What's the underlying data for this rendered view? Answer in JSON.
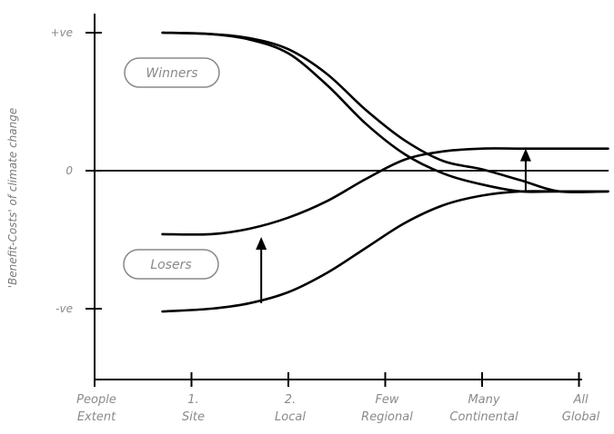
{
  "chart_data": {
    "type": "line",
    "ylabel": "'Benefit-Costs' of climate change",
    "xlabel": "",
    "ylim": [
      -1.4,
      1.4
    ],
    "y_ticks": [
      {
        "value": 1,
        "label": "+ve"
      },
      {
        "value": 0,
        "label": "0"
      },
      {
        "value": -1,
        "label": "-ve"
      }
    ],
    "x_ticks": [
      {
        "value": 0,
        "line1": "People",
        "line2": "Extent"
      },
      {
        "value": 1,
        "line1": "1.",
        "line2": "Site"
      },
      {
        "value": 2,
        "line1": "2.",
        "line2": "Local"
      },
      {
        "value": 3,
        "line1": "Few",
        "line2": "Regional"
      },
      {
        "value": 4,
        "line1": "Many",
        "line2": "Continental"
      },
      {
        "value": 5,
        "line1": "All",
        "line2": "Global"
      }
    ],
    "annotations": [
      "Winners",
      "Losers"
    ],
    "series": [
      {
        "x": [
          0.7,
          1.2,
          1.6,
          2.0,
          2.4,
          2.8,
          3.2,
          3.6,
          4.0,
          4.4,
          4.8,
          5.3
        ],
        "y": [
          1.0,
          0.99,
          0.95,
          0.85,
          0.62,
          0.34,
          0.12,
          -0.02,
          -0.1,
          -0.15,
          -0.15,
          -0.15
        ]
      },
      {
        "x": [
          0.7,
          1.2,
          1.6,
          2.0,
          2.4,
          2.8,
          3.2,
          3.6,
          4.0,
          4.4,
          4.8,
          5.3
        ],
        "y": [
          1.0,
          0.99,
          0.96,
          0.88,
          0.7,
          0.44,
          0.22,
          0.07,
          0.01,
          -0.07,
          -0.15,
          -0.15
        ]
      },
      {
        "x": [
          0.7,
          1.2,
          1.6,
          2.0,
          2.4,
          2.8,
          3.2,
          3.6,
          4.0,
          4.4,
          4.8,
          5.3
        ],
        "y": [
          -0.46,
          -0.46,
          -0.42,
          -0.34,
          -0.22,
          -0.06,
          0.08,
          0.14,
          0.16,
          0.16,
          0.16,
          0.16
        ]
      },
      {
        "x": [
          0.7,
          1.2,
          1.6,
          2.0,
          2.4,
          2.8,
          3.2,
          3.6,
          4.0,
          4.4,
          4.8,
          5.3
        ],
        "y": [
          -1.02,
          -1.0,
          -0.96,
          -0.88,
          -0.74,
          -0.56,
          -0.38,
          -0.25,
          -0.18,
          -0.15,
          -0.15,
          -0.15
        ]
      },
      {
        "x": [
          0.0,
          5.3
        ],
        "y": [
          0.0,
          0.0
        ]
      }
    ],
    "arrows": [
      {
        "x": 1.72,
        "y_from": -0.96,
        "y_to": -0.48
      },
      {
        "x": 4.45,
        "y_from": -0.15,
        "y_to": 0.16
      }
    ],
    "grid": false
  },
  "colors": {
    "axis": "#000000",
    "line": "#000000",
    "text": "#8a8a8a",
    "box": "#888888"
  }
}
